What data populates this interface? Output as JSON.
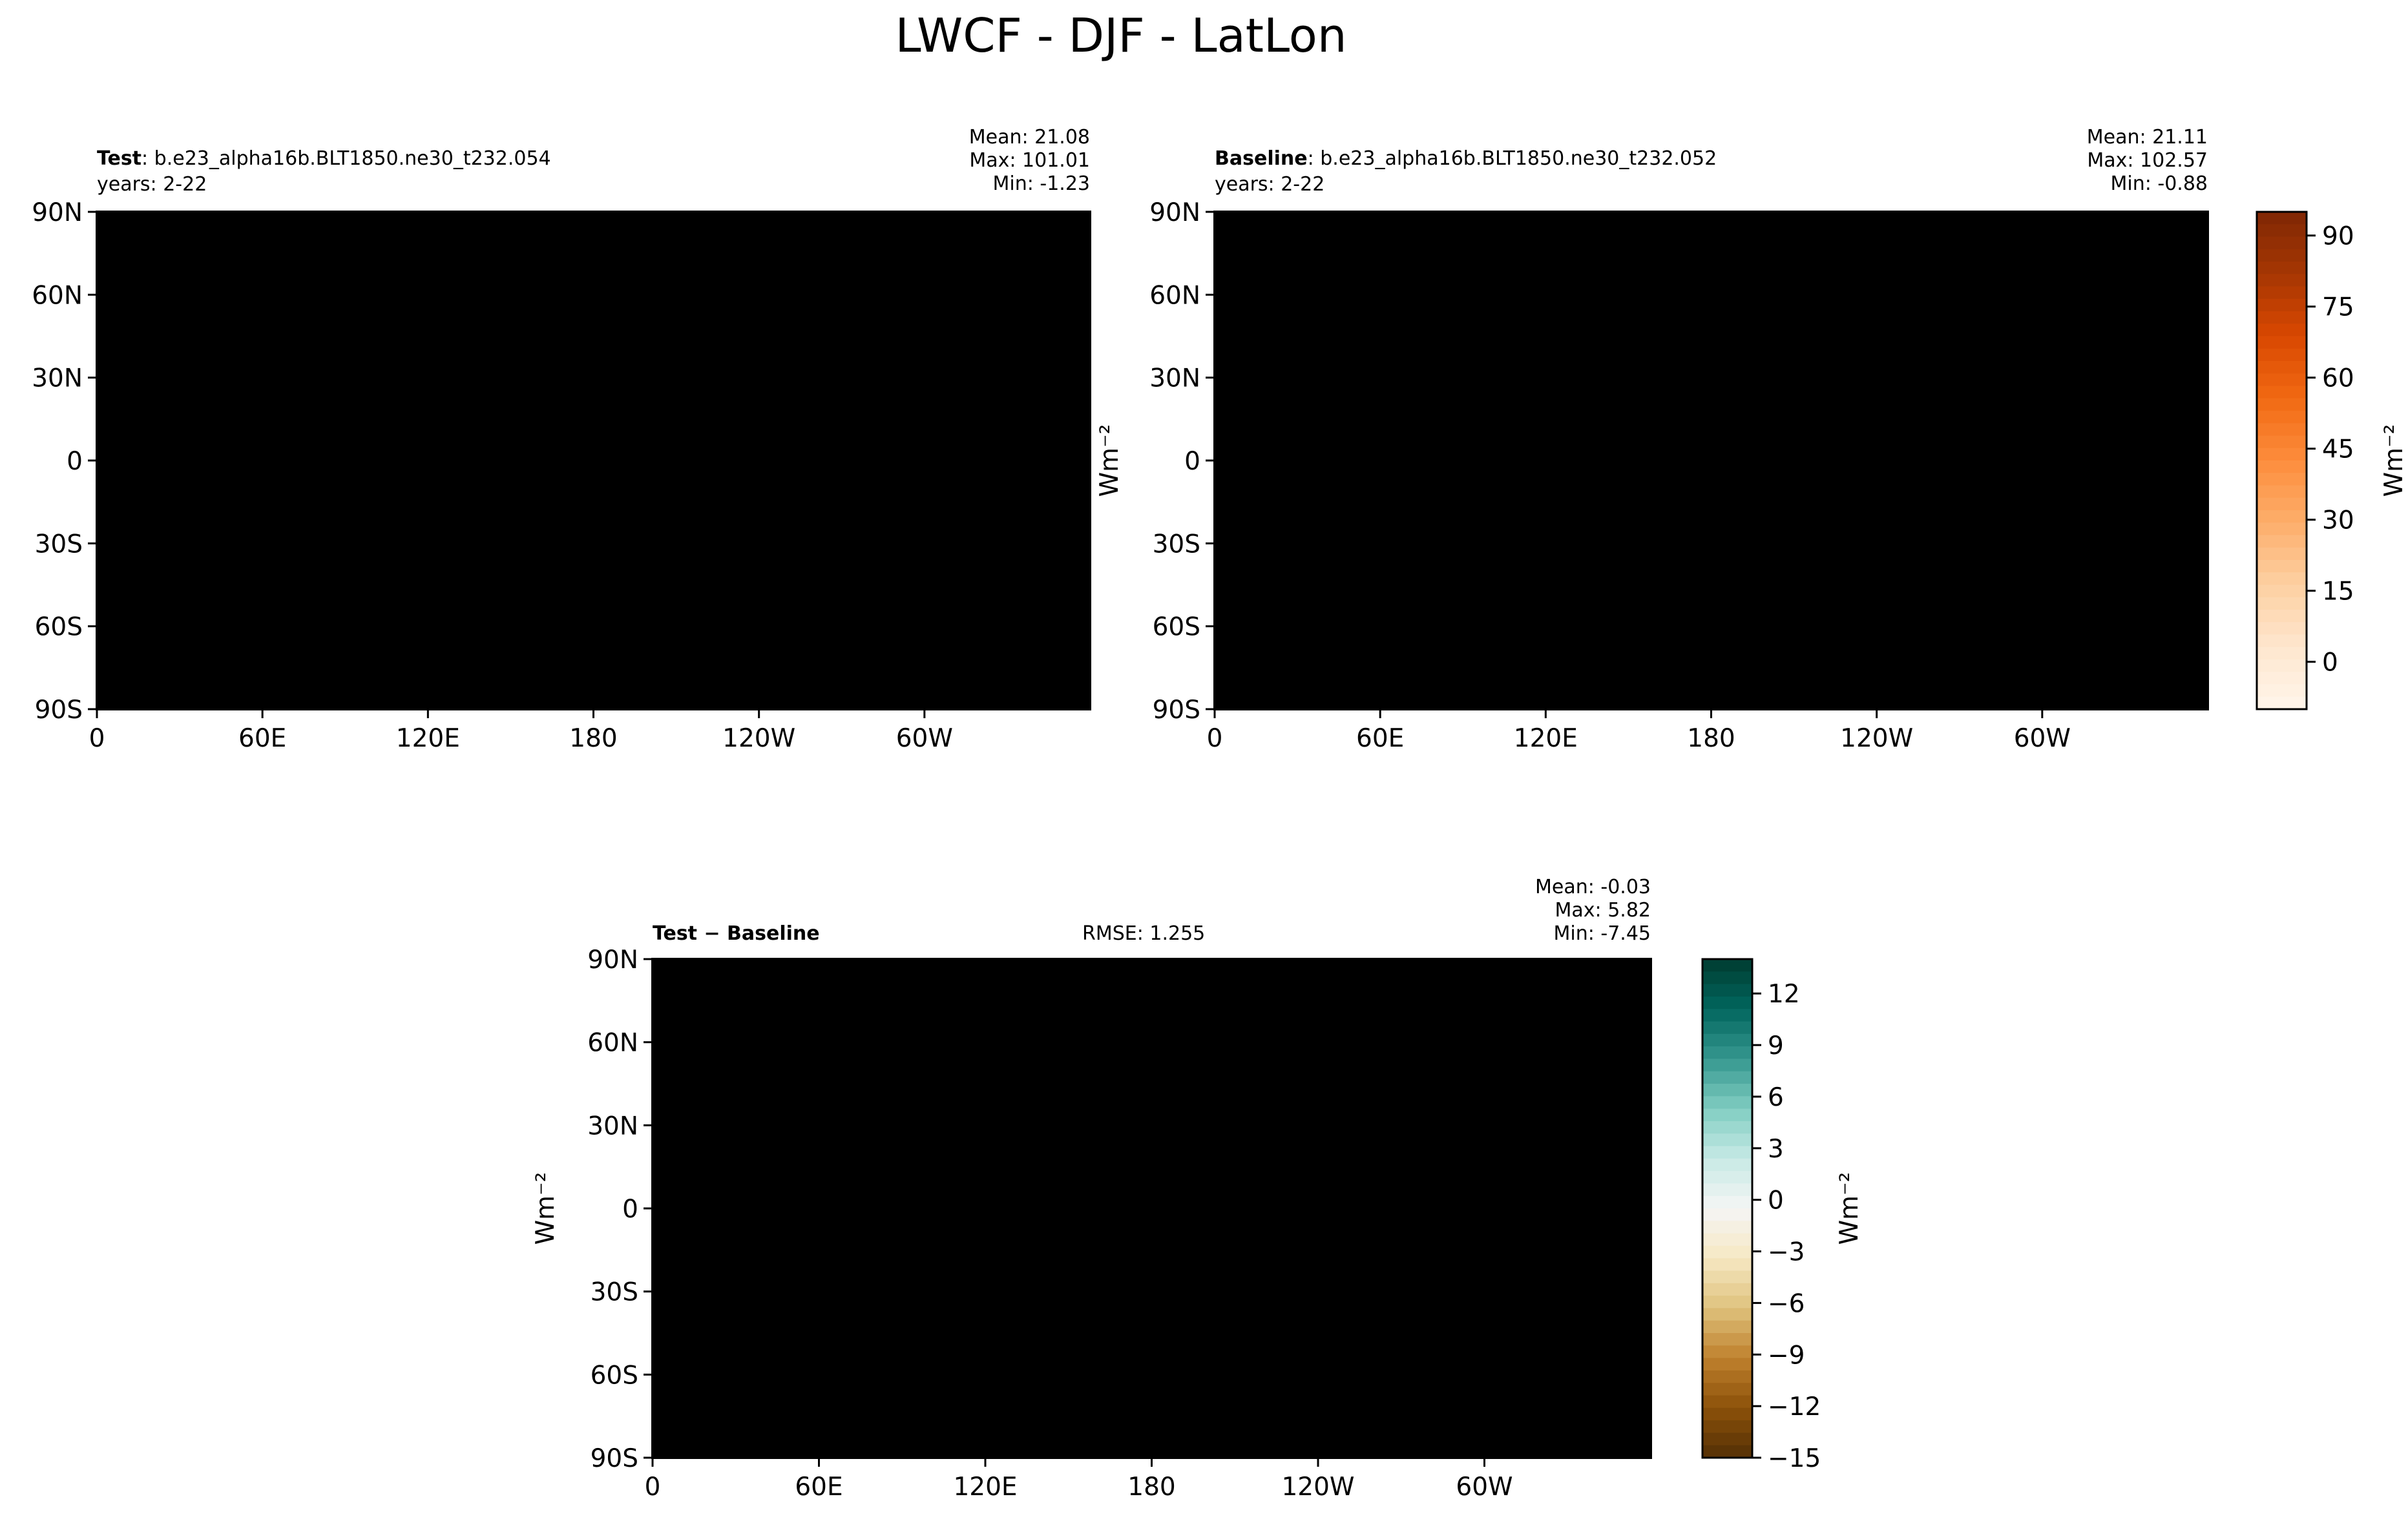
{
  "figure_title": "LWCF - DJF - LatLon",
  "colors": {
    "land_line": "#000000",
    "test_colormap": [
      "#fff5eb",
      "#fee6ce",
      "#fdd0a2",
      "#fdae6b",
      "#fd8d3c",
      "#f16913",
      "#d94801",
      "#a63603",
      "#7f2704"
    ],
    "diff_colormap": [
      "#543005",
      "#8c510a",
      "#bf812d",
      "#dfc27d",
      "#f6e8c3",
      "#f5f5f5",
      "#c7eae5",
      "#80cdc1",
      "#35978f",
      "#01665e",
      "#003c30"
    ]
  },
  "chart_data": [
    {
      "type": "heatmap",
      "panel": "test",
      "title_bold": "Test",
      "title_rest": ": b.e23_alpha16b.BLT1850.ne30_t232.054",
      "subtitle": "years: 2-22",
      "stats": {
        "mean": "Mean: 21.08",
        "max": "Max: 101.01",
        "min": "Min: -1.23"
      },
      "x_ticks": [
        "0",
        "60E",
        "120E",
        "180",
        "120W",
        "60W"
      ],
      "y_ticks": [
        "90N",
        "60N",
        "30N",
        "0",
        "30S",
        "60S",
        "90S"
      ],
      "ylabel": "",
      "value_range": [
        -10,
        95
      ],
      "units": "Wm⁻²"
    },
    {
      "type": "heatmap",
      "panel": "baseline",
      "title_bold": "Baseline",
      "title_rest": ": b.e23_alpha16b.BLT1850.ne30_t232.052",
      "subtitle": "years: 2-22",
      "stats": {
        "mean": "Mean: 21.11",
        "max": "Max: 102.57",
        "min": "Min: -0.88"
      },
      "x_ticks": [
        "0",
        "60E",
        "120E",
        "180",
        "120W",
        "60W"
      ],
      "y_ticks": [
        "90N",
        "60N",
        "30N",
        "0",
        "30S",
        "60S",
        "90S"
      ],
      "ylabel": "Wm⁻²",
      "value_range": [
        -10,
        95
      ],
      "units": "Wm⁻²",
      "colorbar": {
        "ticks": [
          "90",
          "75",
          "60",
          "45",
          "30",
          "15",
          "0"
        ],
        "tick_values": [
          90,
          75,
          60,
          45,
          30,
          15,
          0
        ],
        "range": [
          -10,
          95
        ],
        "label": "Wm⁻²"
      }
    },
    {
      "type": "heatmap",
      "panel": "difference",
      "title_bold": "Test − Baseline",
      "rmse": "RMSE: 1.255",
      "stats": {
        "mean": "Mean: -0.03",
        "max": "Max:  5.82",
        "min": "Min: -7.45"
      },
      "x_ticks": [
        "0",
        "60E",
        "120E",
        "180",
        "120W",
        "60W"
      ],
      "y_ticks": [
        "90N",
        "60N",
        "30N",
        "0",
        "30S",
        "60S",
        "90S"
      ],
      "ylabel": "Wm⁻²",
      "value_range": [
        -15,
        14
      ],
      "units": "Wm⁻²",
      "colorbar": {
        "ticks": [
          "12",
          "9",
          "6",
          "3",
          "0",
          "−3",
          "−6",
          "−9",
          "−12",
          "−15"
        ],
        "tick_values": [
          12,
          9,
          6,
          3,
          0,
          -3,
          -6,
          -9,
          -12,
          -15
        ],
        "range": [
          -15,
          14
        ],
        "label": "Wm⁻²"
      }
    }
  ]
}
